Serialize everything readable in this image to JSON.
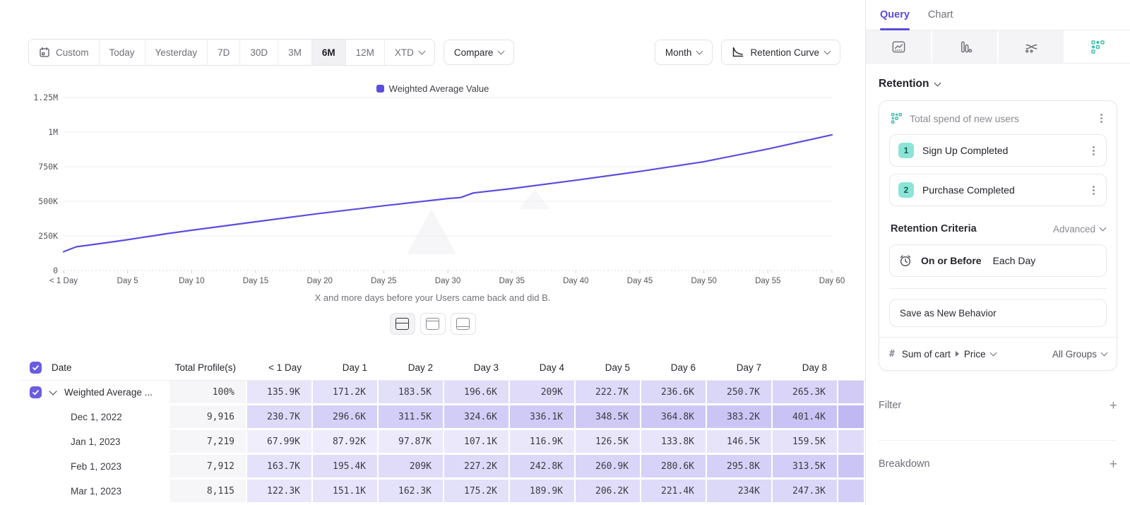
{
  "toolbar": {
    "ranges": [
      "Custom",
      "Today",
      "Yesterday",
      "7D",
      "30D",
      "3M",
      "6M",
      "12M",
      "XTD"
    ],
    "selected_range": "6M",
    "compare_label": "Compare",
    "granularity_label": "Month",
    "chart_type_label": "Retention Curve"
  },
  "chart": {
    "legend_label": "Weighted Average Value",
    "x_axis_title": "X and more days before your Users came back and did B.",
    "line_color": "#5b4de0",
    "y_ticks": [
      {
        "v": 0,
        "label": "0"
      },
      {
        "v": 250000,
        "label": "250K"
      },
      {
        "v": 500000,
        "label": "500K"
      },
      {
        "v": 750000,
        "label": "750K"
      },
      {
        "v": 1000000,
        "label": "1M"
      },
      {
        "v": 1250000,
        "label": "1.25M"
      }
    ],
    "x_ticks": [
      {
        "d": 0,
        "label": "< 1 Day"
      },
      {
        "d": 5,
        "label": "Day 5"
      },
      {
        "d": 10,
        "label": "Day 10"
      },
      {
        "d": 15,
        "label": "Day 15"
      },
      {
        "d": 20,
        "label": "Day 20"
      },
      {
        "d": 25,
        "label": "Day 25"
      },
      {
        "d": 30,
        "label": "Day 30"
      },
      {
        "d": 35,
        "label": "Day 35"
      },
      {
        "d": 40,
        "label": "Day 40"
      },
      {
        "d": 45,
        "label": "Day 45"
      },
      {
        "d": 50,
        "label": "Day 50"
      },
      {
        "d": 55,
        "label": "Day 55"
      },
      {
        "d": 60,
        "label": "Day 60"
      }
    ]
  },
  "chart_data": {
    "type": "line",
    "xlabel": "X and more days before your Users came back and did B.",
    "xlim": [
      0,
      60
    ],
    "ylim": [
      0,
      1250000
    ],
    "grid": true,
    "legend_position": "top-center",
    "series": [
      {
        "name": "Weighted Average Value",
        "points": [
          [
            0,
            135900
          ],
          [
            1,
            171200
          ],
          [
            2,
            183500
          ],
          [
            3,
            196600
          ],
          [
            4,
            209000
          ],
          [
            5,
            222700
          ],
          [
            6,
            236600
          ],
          [
            7,
            250700
          ],
          [
            8,
            265300
          ],
          [
            10,
            291000
          ],
          [
            15,
            352000
          ],
          [
            20,
            412000
          ],
          [
            25,
            468000
          ],
          [
            30,
            520000
          ],
          [
            31,
            527000
          ],
          [
            32,
            560000
          ],
          [
            35,
            592000
          ],
          [
            40,
            652000
          ],
          [
            45,
            716000
          ],
          [
            50,
            786000
          ],
          [
            55,
            878000
          ],
          [
            60,
            980000
          ]
        ]
      }
    ]
  },
  "view_toggles": {
    "options": [
      "split-view",
      "top-pane-view",
      "bottom-pane-view"
    ],
    "selected": "split-view"
  },
  "table": {
    "columns": [
      "Date",
      "Total Profile(s)",
      "< 1 Day",
      "Day 1",
      "Day 2",
      "Day 3",
      "Day 4",
      "Day 5",
      "Day 6",
      "Day 7",
      "Day 8"
    ],
    "rows": [
      {
        "label": "Weighted Average ...",
        "total": "100%",
        "checked": true,
        "expandable": true,
        "values": [
          "135.9K",
          "171.2K",
          "183.5K",
          "196.6K",
          "209K",
          "222.7K",
          "236.6K",
          "250.7K",
          "265.3K"
        ]
      },
      {
        "label": "Dec 1, 2022",
        "total": "9,916",
        "values": [
          "230.7K",
          "296.6K",
          "311.5K",
          "324.6K",
          "336.1K",
          "348.5K",
          "364.8K",
          "383.2K",
          "401.4K"
        ]
      },
      {
        "label": "Jan 1, 2023",
        "total": "7,219",
        "values": [
          "67.99K",
          "87.92K",
          "97.87K",
          "107.1K",
          "116.9K",
          "126.5K",
          "133.8K",
          "146.5K",
          "159.5K"
        ]
      },
      {
        "label": "Feb 1, 2023",
        "total": "7,912",
        "values": [
          "163.7K",
          "195.4K",
          "209K",
          "227.2K",
          "242.8K",
          "260.9K",
          "280.6K",
          "295.8K",
          "313.5K"
        ]
      },
      {
        "label": "Mar 1, 2023",
        "total": "8,115",
        "values": [
          "122.3K",
          "151.1K",
          "162.3K",
          "175.2K",
          "189.9K",
          "206.2K",
          "221.4K",
          "234K",
          "247.3K"
        ]
      }
    ]
  },
  "panel": {
    "tabs": [
      "Query",
      "Chart"
    ],
    "active_tab": "Query",
    "section_label": "Retention",
    "metric": {
      "title": "Total spend of new users",
      "steps": [
        {
          "num": "1",
          "label": "Sign Up Completed"
        },
        {
          "num": "2",
          "label": "Purchase Completed"
        }
      ],
      "criteria_label": "Retention Criteria",
      "criteria_mode": "Advanced",
      "criteria_condition": "On or Before",
      "criteria_unit": "Each Day",
      "save_label": "Save as New Behavior",
      "measure_entity": "Sum of cart",
      "measure_property": "Price",
      "groups_label": "All Groups"
    },
    "sections": [
      {
        "label": "Filter"
      },
      {
        "label": "Breakdown"
      }
    ]
  },
  "colors": {
    "accent_purple": "#5a4bdb",
    "line_purple": "#5b4de0",
    "cell_purple": "#6856e2",
    "teal": "#45c0ae",
    "teal_badge_bg": "#8ce4d8"
  }
}
